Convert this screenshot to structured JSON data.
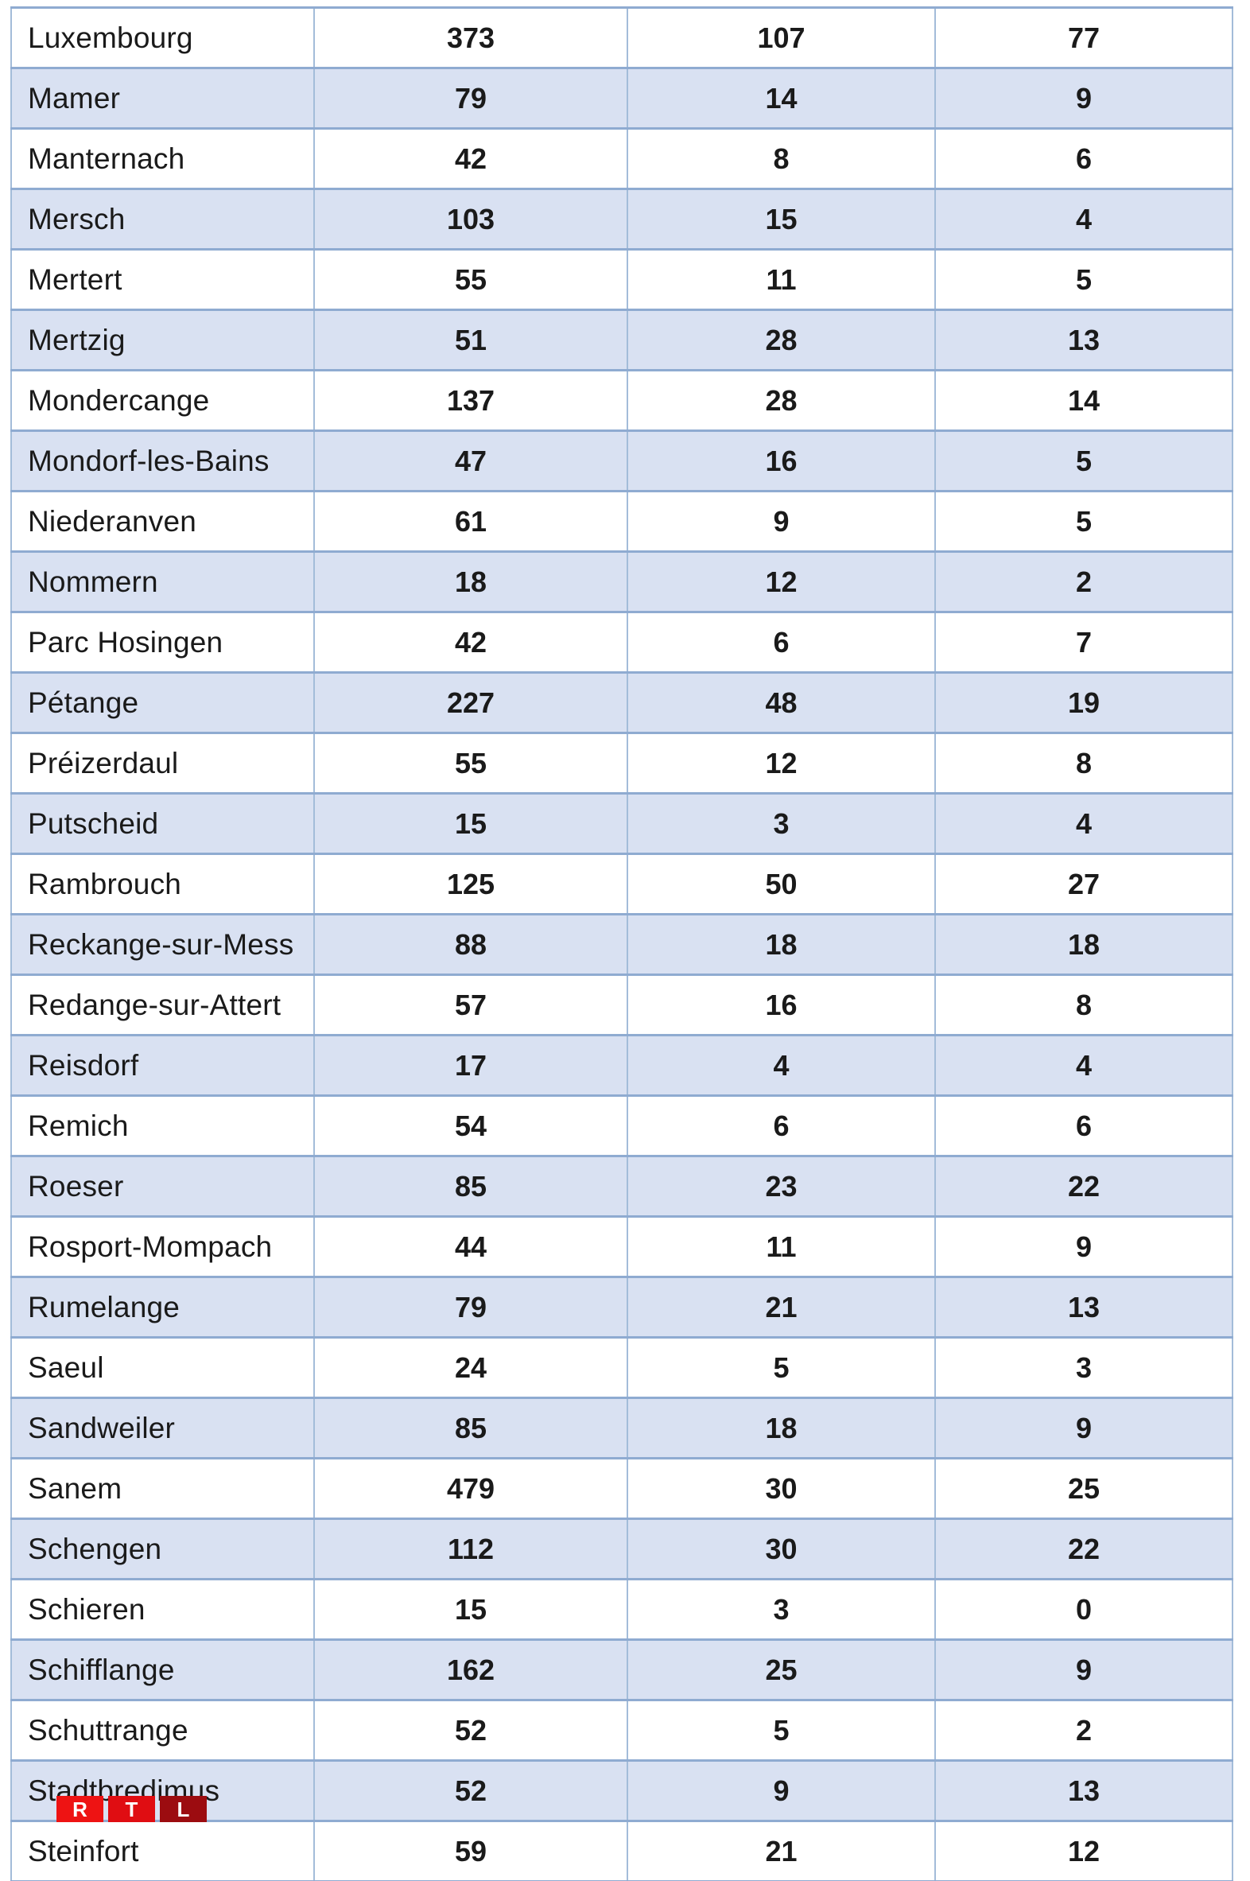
{
  "page": {
    "background": "#ffffff"
  },
  "table": {
    "row_color": "#ffffff",
    "row_alt_color": "#d9e1f2",
    "border_color": "#8fabd1",
    "text_color": "#1a1a1a",
    "columns": [
      "municipality",
      "value-1",
      "value-2",
      "value-3"
    ],
    "rows": [
      {
        "name": "Luxembourg",
        "values": [
          "373",
          "107",
          "77"
        ]
      },
      {
        "name": "Mamer",
        "values": [
          "79",
          "14",
          "9"
        ]
      },
      {
        "name": "Manternach",
        "values": [
          "42",
          "8",
          "6"
        ]
      },
      {
        "name": "Mersch",
        "values": [
          "103",
          "15",
          "4"
        ]
      },
      {
        "name": "Mertert",
        "values": [
          "55",
          "11",
          "5"
        ]
      },
      {
        "name": "Mertzig",
        "values": [
          "51",
          "28",
          "13"
        ]
      },
      {
        "name": "Mondercange",
        "values": [
          "137",
          "28",
          "14"
        ]
      },
      {
        "name": "Mondorf-les-Bains",
        "values": [
          "47",
          "16",
          "5"
        ]
      },
      {
        "name": "Niederanven",
        "values": [
          "61",
          "9",
          "5"
        ]
      },
      {
        "name": "Nommern",
        "values": [
          "18",
          "12",
          "2"
        ]
      },
      {
        "name": "Parc Hosingen",
        "values": [
          "42",
          "6",
          "7"
        ]
      },
      {
        "name": "Pétange",
        "values": [
          "227",
          "48",
          "19"
        ]
      },
      {
        "name": "Préizerdaul",
        "values": [
          "55",
          "12",
          "8"
        ]
      },
      {
        "name": "Putscheid",
        "values": [
          "15",
          "3",
          "4"
        ]
      },
      {
        "name": "Rambrouch",
        "values": [
          "125",
          "50",
          "27"
        ]
      },
      {
        "name": "Reckange-sur-Mess",
        "values": [
          "88",
          "18",
          "18"
        ]
      },
      {
        "name": "Redange-sur-Attert",
        "values": [
          "57",
          "16",
          "8"
        ]
      },
      {
        "name": "Reisdorf",
        "values": [
          "17",
          "4",
          "4"
        ]
      },
      {
        "name": "Remich",
        "values": [
          "54",
          "6",
          "6"
        ]
      },
      {
        "name": "Roeser",
        "values": [
          "85",
          "23",
          "22"
        ]
      },
      {
        "name": "Rosport-Mompach",
        "values": [
          "44",
          "11",
          "9"
        ]
      },
      {
        "name": "Rumelange",
        "values": [
          "79",
          "21",
          "13"
        ]
      },
      {
        "name": "Saeul",
        "values": [
          "24",
          "5",
          "3"
        ]
      },
      {
        "name": "Sandweiler",
        "values": [
          "85",
          "18",
          "9"
        ]
      },
      {
        "name": "Sanem",
        "values": [
          "479",
          "30",
          "25"
        ]
      },
      {
        "name": "Schengen",
        "values": [
          "112",
          "30",
          "22"
        ]
      },
      {
        "name": "Schieren",
        "values": [
          "15",
          "3",
          "0"
        ]
      },
      {
        "name": "Schifflange",
        "values": [
          "162",
          "25",
          "9"
        ]
      },
      {
        "name": "Schuttrange",
        "values": [
          "52",
          "5",
          "2"
        ]
      },
      {
        "name": "Stadtbredimus",
        "values": [
          "52",
          "9",
          "13"
        ]
      },
      {
        "name": "Steinfort",
        "values": [
          "59",
          "21",
          "12"
        ]
      }
    ]
  },
  "logo": {
    "name": "RTL",
    "letters": [
      {
        "char": "R",
        "color": "#ee1313"
      },
      {
        "char": "T",
        "color": "#e00d12"
      },
      {
        "char": "L",
        "color": "#9c0c10"
      }
    ]
  }
}
